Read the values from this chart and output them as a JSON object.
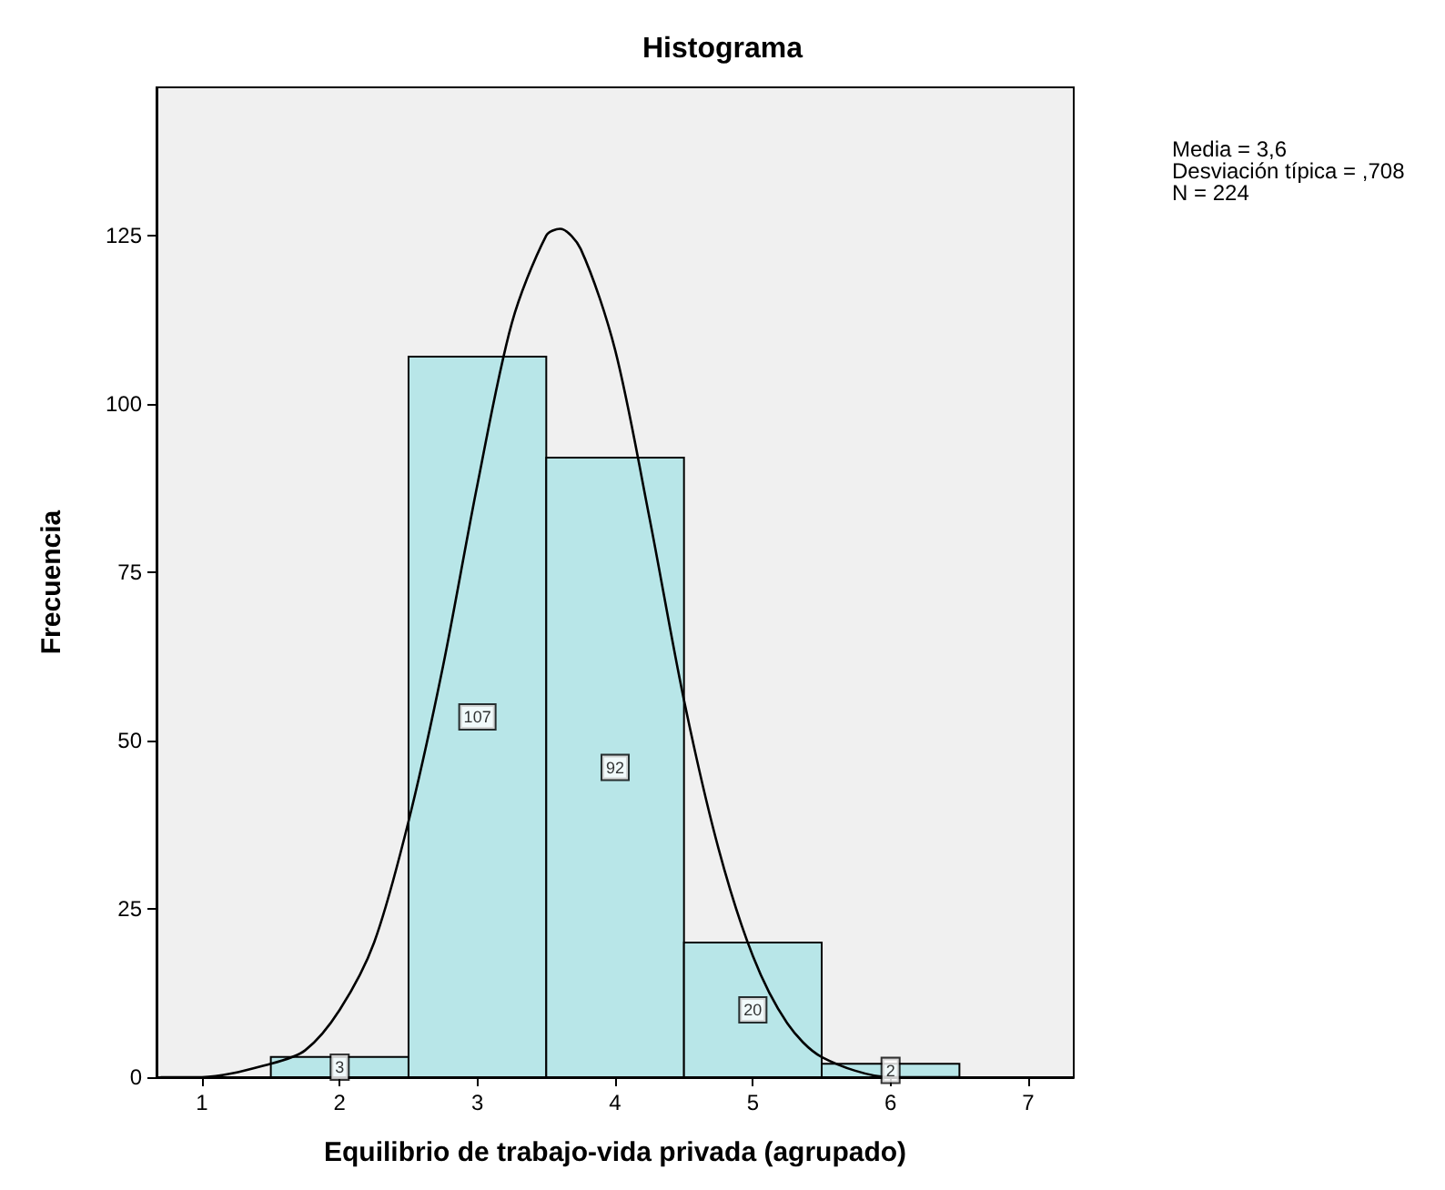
{
  "chart_data": {
    "type": "histogram",
    "title": "Histograma",
    "xlabel": "Equilibrio de trabajo-vida privada (agrupado)",
    "ylabel": "Frecuencia",
    "bins": [
      1.5,
      2.5,
      3.5,
      4.5,
      5.5,
      6.5
    ],
    "values": [
      3,
      107,
      92,
      20,
      2
    ],
    "color": "#b8e6e8",
    "value_labels": [
      "3",
      "107",
      "92",
      "20",
      "2"
    ],
    "series": [
      {
        "type": "line",
        "color": "#000000",
        "x": [
          0.7,
          1,
          1.5,
          1.75,
          2,
          2.25,
          2.5,
          2.75,
          3,
          3.25,
          3.5,
          3.6,
          3.75,
          4,
          4.25,
          4.5,
          4.75,
          5,
          5.25,
          5.5,
          6,
          6.5
        ],
        "values": [
          0,
          0,
          2,
          4,
          10,
          20,
          38,
          61,
          88,
          112,
          125,
          126,
          123,
          108,
          83,
          56,
          34,
          18,
          8,
          3,
          0,
          0
        ]
      }
    ],
    "xlim": [
      0.67,
      7.33
    ],
    "ylim": [
      0,
      147
    ],
    "xticks": [
      1,
      2,
      3,
      4,
      5,
      6,
      7
    ],
    "yticks": [
      0,
      25,
      50,
      75,
      100,
      125
    ],
    "grid": false,
    "legend": false,
    "marker": "none",
    "line_style": "solid",
    "annotations": [
      "Media = 3,6",
      "Desviación típica = ,708",
      "N = 224"
    ]
  }
}
